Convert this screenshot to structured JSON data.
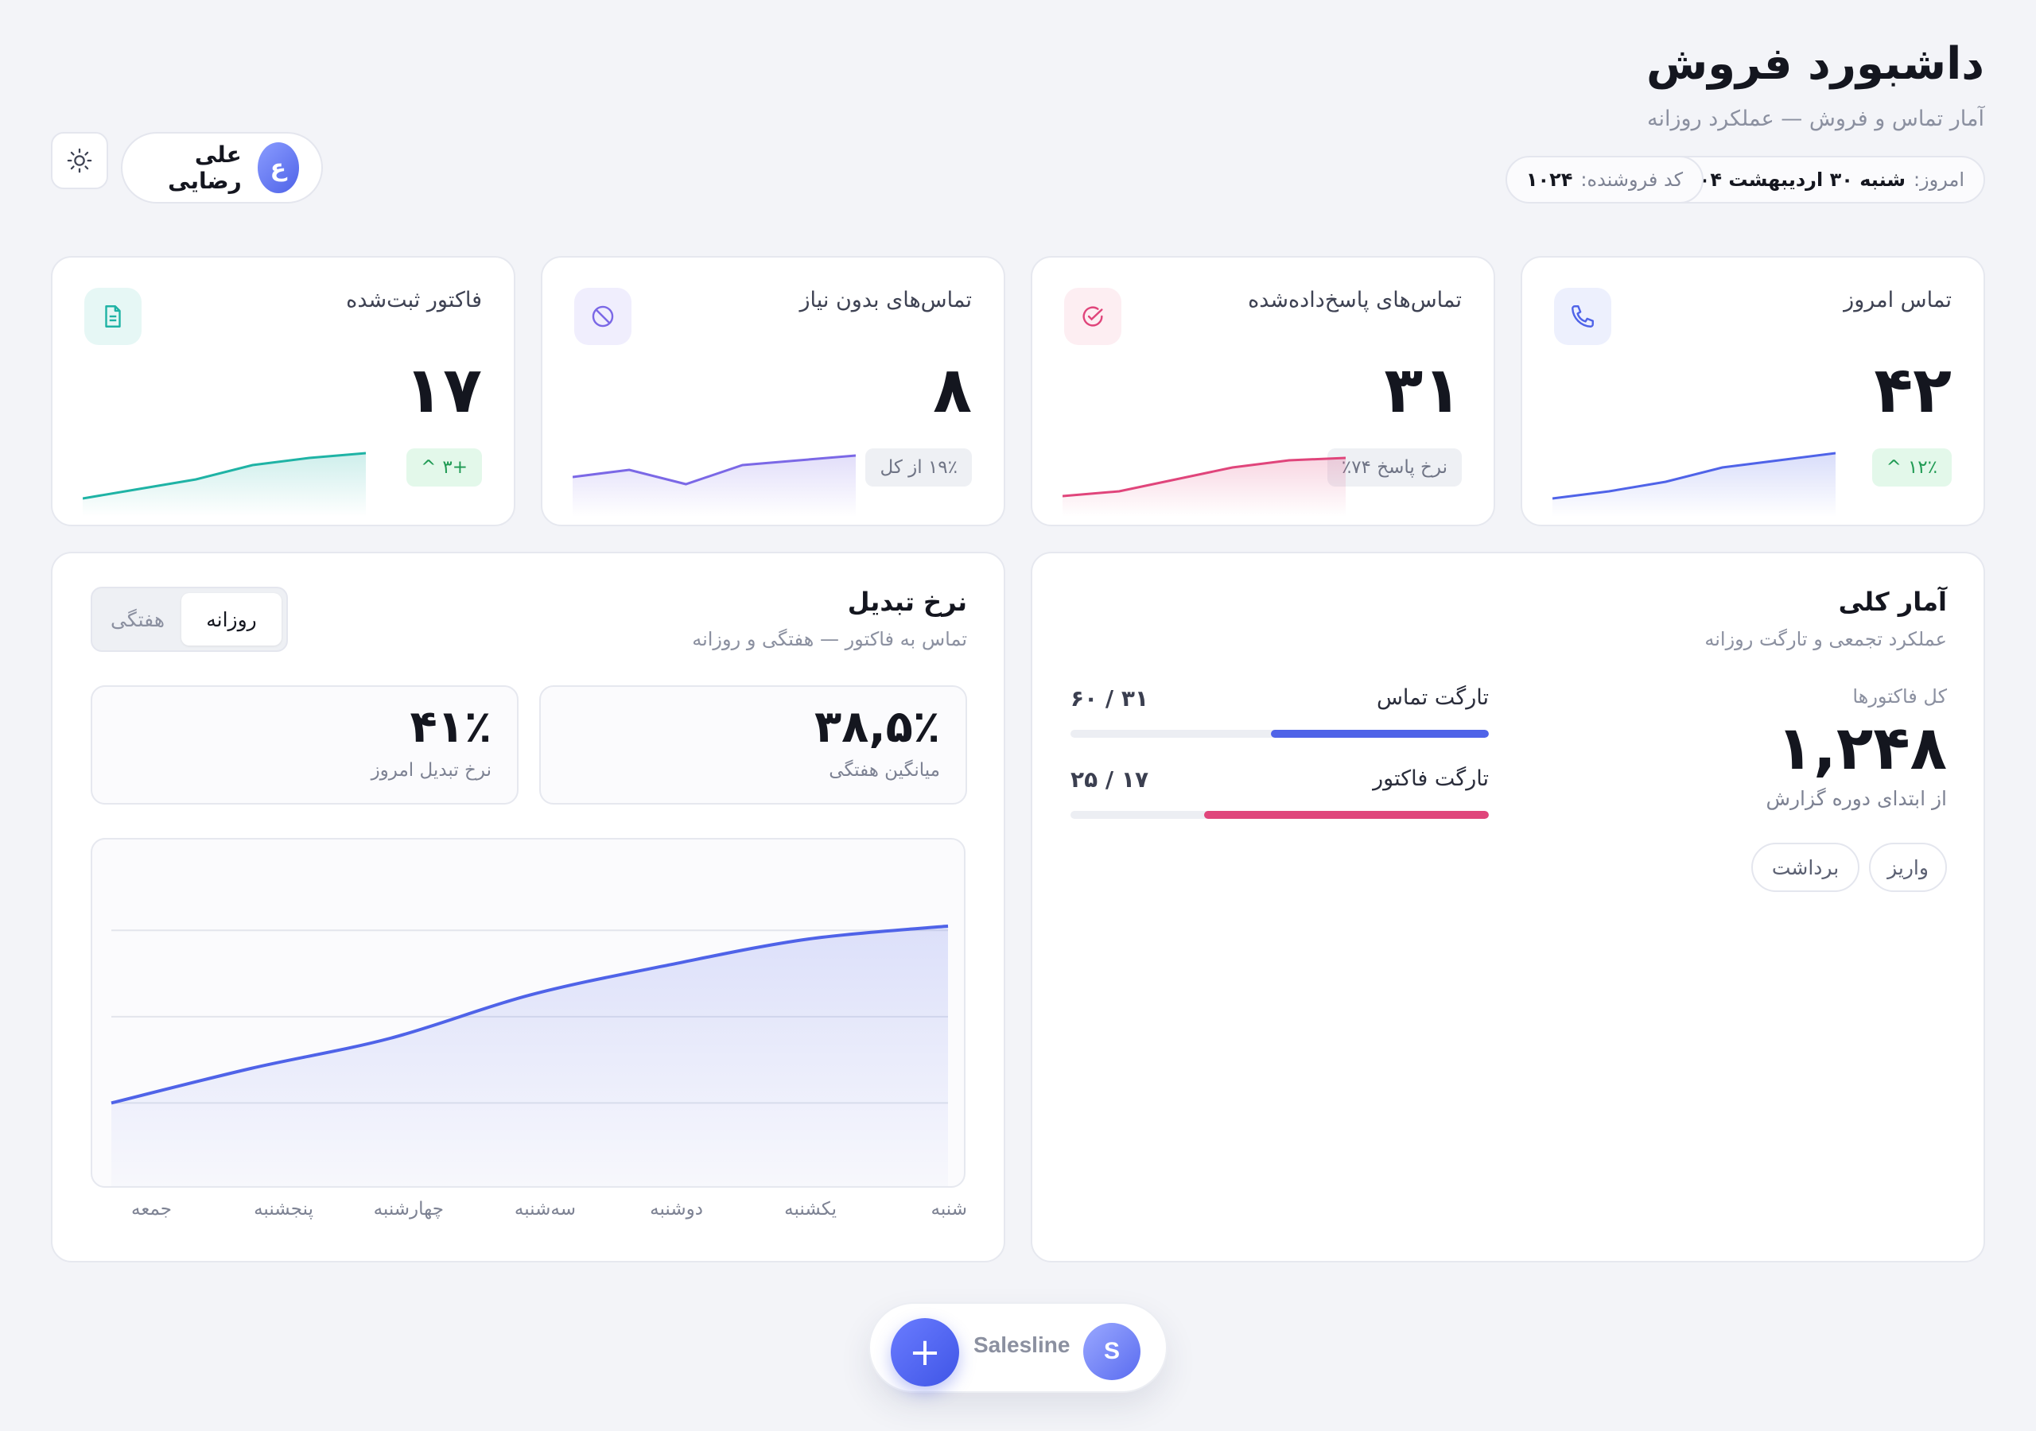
{
  "header": {
    "title": "داشبورد فروش",
    "subtitle": "آمار تماس و فروش — عملکرد روزانه",
    "date_label": "امروز:",
    "date_value": "شنبه ۳۰ اردیبهشت ۱۴۰۴",
    "seller_label": "کد فروشنده:",
    "seller_value": "۱۰۲۴",
    "user_name": "علی رضایی",
    "user_initial": "ع"
  },
  "stats": [
    {
      "title": "تماس امروز",
      "value": "۴۲",
      "badge": "۱۲٪",
      "badge_arrow": "^",
      "icon": "phone-icon",
      "color": "#4f63e8",
      "trend": [
        0.05,
        0.2,
        0.4,
        0.7,
        0.85,
        1.0
      ]
    },
    {
      "title": "تماس‌های پاسخ‌داده‌شده",
      "value": "۳۱",
      "badge": "نرخ پاسخ ۷۴٪",
      "icon": "check-circle-icon",
      "color": "#e0457b",
      "trend": [
        0.1,
        0.2,
        0.45,
        0.7,
        0.85,
        0.9
      ]
    },
    {
      "title": "تماس‌های بدون نیاز",
      "value": "۸",
      "badge": "۱۹٪ از کل",
      "icon": "block-icon",
      "color": "#7b68e6",
      "trend": [
        0.5,
        0.65,
        0.35,
        0.75,
        0.85,
        0.95
      ]
    },
    {
      "title": "فاکتور ثبت‌شده",
      "value": "۱۷",
      "badge": "+۳",
      "badge_arrow": "^",
      "icon": "document-icon",
      "color": "#1fb3a5",
      "trend": [
        0.05,
        0.25,
        0.45,
        0.75,
        0.9,
        1.0
      ]
    }
  ],
  "overview": {
    "title": "آمار کلی",
    "subtitle": "عملکرد تجمعی و تارگت روزانه",
    "total_label": "کل فاکتورها",
    "total_value": "۱,۲۴۸",
    "since_label": "از ابتدای دوره گزارش",
    "chip_deposit": "واریز",
    "chip_withdraw": "برداشت",
    "targets": [
      {
        "label": "تارگت تماس",
        "value": "۶۰ / ۳۱",
        "progress": 0.52,
        "color": "#4f63e8"
      },
      {
        "label": "تارگت فاکتور",
        "value": "۲۵ / ۱۷",
        "progress": 0.68,
        "color": "#e0457b"
      }
    ]
  },
  "conversion": {
    "title": "نرخ تبدیل",
    "subtitle": "تماس به فاکتور — هفتگی و روزانه",
    "tab_daily": "روزانه",
    "tab_weekly": "هفتگی",
    "weekly_avg_value": "۳۸,۵٪",
    "weekly_avg_label": "میانگین هفتگی",
    "today_value": "۴۱٪",
    "today_label": "نرخ تبدیل امروز",
    "days": [
      "شنبه",
      "یکشنبه",
      "دوشنبه",
      "سه‌شنبه",
      "چهارشنبه",
      "پنجشنبه",
      "جمعه"
    ]
  },
  "chart_data": {
    "type": "area",
    "categories": [
      "جمعه",
      "پنجشنبه",
      "چهارشنبه",
      "سه‌شنبه",
      "دوشنبه",
      "یکشنبه",
      "شنبه"
    ],
    "values": [
      20,
      28,
      35,
      45,
      52,
      58,
      61
    ],
    "ylim": [
      0,
      70
    ],
    "grid": true,
    "color": "#4f63e8"
  },
  "dock": {
    "brand": "Salesline",
    "logo_letter": "S",
    "add_label": "+"
  }
}
